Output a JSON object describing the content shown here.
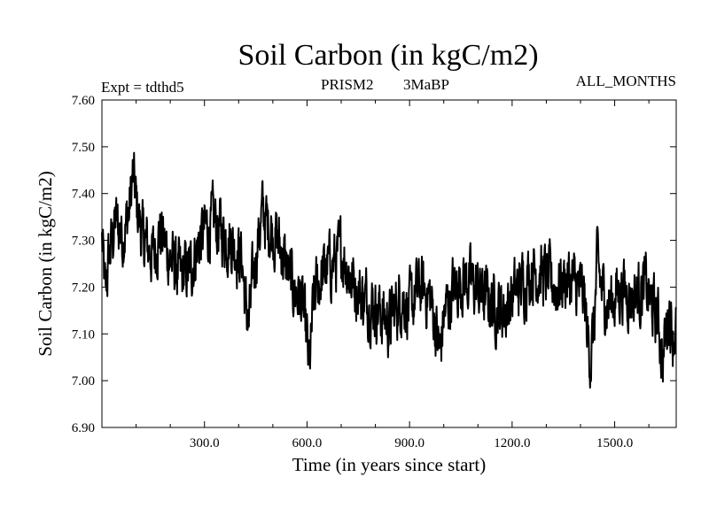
{
  "chart_data": {
    "type": "line",
    "title": "Soil Carbon (in kgC/m2)",
    "subtitle_left": "Expt = tdthd5",
    "subtitle_center_1": "PRISM2",
    "subtitle_center_2": "3MaBP",
    "subtitle_right": "ALL_MONTHS",
    "xlabel": "Time (in years since start)",
    "ylabel": "Soil Carbon (in kgC/m2)",
    "xlim": [
      0,
      1680
    ],
    "ylim": [
      6.9,
      7.6
    ],
    "xticks": [
      300,
      600,
      900,
      1200,
      1500
    ],
    "xtick_labels": [
      "300.0",
      "600.0",
      "900.0",
      "1200.0",
      "1500.0"
    ],
    "yticks": [
      6.9,
      7.0,
      7.1,
      7.2,
      7.3,
      7.4,
      7.5,
      7.6
    ],
    "ytick_labels": [
      "6.90",
      "7.00",
      "7.10",
      "7.20",
      "7.30",
      "7.40",
      "7.50",
      "7.60"
    ],
    "grid": false,
    "series": [
      {
        "name": "Soil Carbon",
        "color": "#000000",
        "x": [
          0,
          10,
          20,
          40,
          60,
          80,
          90,
          100,
          120,
          150,
          170,
          200,
          230,
          260,
          280,
          300,
          330,
          360,
          380,
          410,
          420,
          430,
          440,
          450,
          470,
          480,
          500,
          520,
          540,
          560,
          580,
          590,
          600,
          605,
          610,
          615,
          620,
          640,
          660,
          690,
          700,
          730,
          760,
          800,
          820,
          840,
          860,
          880,
          900,
          930,
          960,
          980,
          990,
          1000,
          1030,
          1060,
          1090,
          1120,
          1150,
          1180,
          1200,
          1220,
          1240,
          1260,
          1300,
          1330,
          1360,
          1390,
          1410,
          1420,
          1430,
          1440,
          1450,
          1460,
          1480,
          1500,
          1520,
          1550,
          1570,
          1590,
          1610,
          1630,
          1640,
          1650,
          1660,
          1670,
          1680
        ],
        "y": [
          7.3,
          7.18,
          7.26,
          7.34,
          7.31,
          7.36,
          7.44,
          7.38,
          7.3,
          7.27,
          7.32,
          7.26,
          7.22,
          7.24,
          7.29,
          7.32,
          7.34,
          7.31,
          7.3,
          7.26,
          7.16,
          7.12,
          7.2,
          7.27,
          7.36,
          7.34,
          7.32,
          7.29,
          7.24,
          7.2,
          7.18,
          7.14,
          7.08,
          7.03,
          7.05,
          7.12,
          7.18,
          7.22,
          7.24,
          7.26,
          7.28,
          7.22,
          7.18,
          7.16,
          7.14,
          7.12,
          7.16,
          7.18,
          7.15,
          7.2,
          7.18,
          7.1,
          7.06,
          7.14,
          7.2,
          7.22,
          7.2,
          7.18,
          7.16,
          7.15,
          7.18,
          7.2,
          7.22,
          7.24,
          7.22,
          7.2,
          7.22,
          7.2,
          7.18,
          7.1,
          7.05,
          7.12,
          7.26,
          7.2,
          7.16,
          7.18,
          7.2,
          7.18,
          7.19,
          7.2,
          7.16,
          7.12,
          7.04,
          7.1,
          7.16,
          7.1,
          7.12
        ]
      }
    ]
  }
}
